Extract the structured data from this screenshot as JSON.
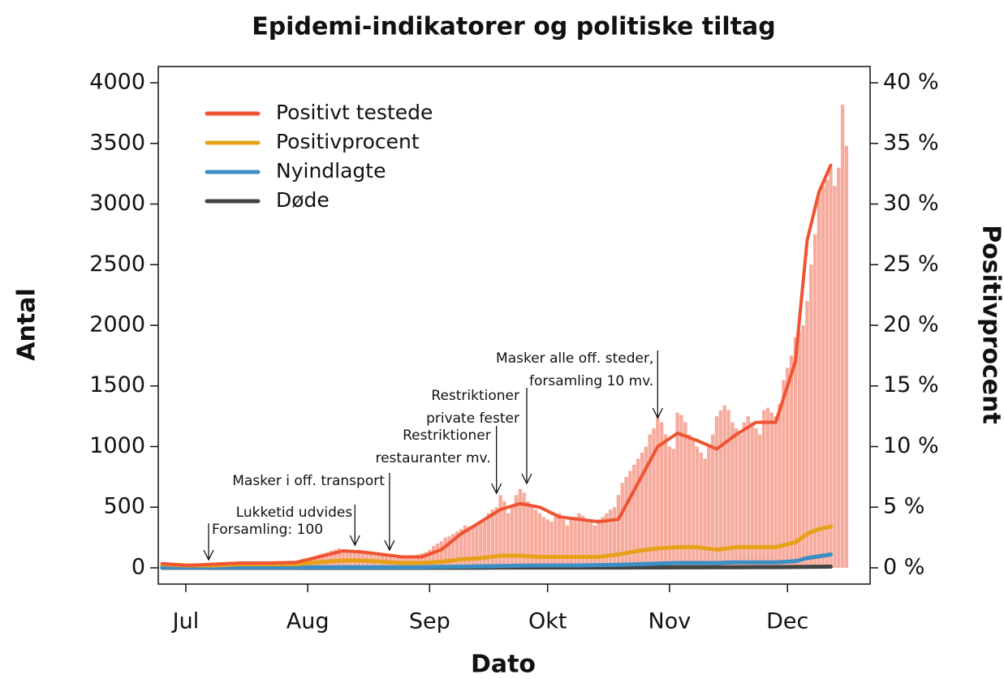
{
  "chart_data": {
    "type": "bar-line",
    "title": "Epidemi-indikatorer og politiske tiltag",
    "xlabel": "Dato",
    "ylabel": "Antal",
    "y2label": "Positivprocent",
    "xlim": [
      -7,
      174
    ],
    "xticks": [
      {
        "value": 0,
        "label": "Jul"
      },
      {
        "value": 31,
        "label": "Aug"
      },
      {
        "value": 62,
        "label": "Sep"
      },
      {
        "value": 92,
        "label": "Okt"
      },
      {
        "value": 123,
        "label": "Nov"
      },
      {
        "value": 153,
        "label": "Dec"
      }
    ],
    "ylim": [
      -134,
      4134
    ],
    "yticks": [
      0,
      500,
      1000,
      1500,
      2000,
      2500,
      3000,
      3500,
      4000
    ],
    "y2lim": [
      -1.34,
      41.34
    ],
    "y2ticks": [
      {
        "value": 0,
        "label": "0 %"
      },
      {
        "value": 5,
        "label": "5 %"
      },
      {
        "value": 10,
        "label": "10 %"
      },
      {
        "value": 15,
        "label": "15 %"
      },
      {
        "value": 20,
        "label": "20 %"
      },
      {
        "value": 25,
        "label": "25 %"
      },
      {
        "value": 30,
        "label": "30 %"
      },
      {
        "value": 35,
        "label": "35 %"
      },
      {
        "value": 40,
        "label": "40 %"
      }
    ],
    "legend": "top-left",
    "bars": {
      "color": "#f6ab9d",
      "x": [
        -6,
        -5,
        -4,
        -3,
        -2,
        -1,
        0,
        1,
        2,
        3,
        4,
        5,
        6,
        7,
        8,
        9,
        10,
        11,
        12,
        13,
        14,
        15,
        16,
        17,
        18,
        19,
        20,
        21,
        22,
        23,
        24,
        25,
        26,
        27,
        28,
        29,
        30,
        31,
        32,
        33,
        34,
        35,
        36,
        37,
        38,
        39,
        40,
        41,
        42,
        43,
        44,
        45,
        46,
        47,
        48,
        49,
        50,
        51,
        52,
        53,
        54,
        55,
        56,
        57,
        58,
        59,
        60,
        61,
        62,
        63,
        64,
        65,
        66,
        67,
        68,
        69,
        70,
        71,
        72,
        73,
        74,
        75,
        76,
        77,
        78,
        79,
        80,
        81,
        82,
        83,
        84,
        85,
        86,
        87,
        88,
        89,
        90,
        91,
        92,
        93,
        94,
        95,
        96,
        97,
        98,
        99,
        100,
        101,
        102,
        103,
        104,
        105,
        106,
        107,
        108,
        109,
        110,
        111,
        112,
        113,
        114,
        115,
        116,
        117,
        118,
        119,
        120,
        121,
        122,
        123,
        124,
        125,
        126,
        127,
        128,
        129,
        130,
        131,
        132,
        133,
        134,
        135,
        136,
        137,
        138,
        139,
        140,
        141,
        142,
        143,
        144,
        145,
        146,
        147,
        148,
        149,
        150,
        151,
        152,
        153,
        154,
        155,
        156,
        157,
        158,
        159,
        160,
        161,
        162,
        163,
        164,
        165,
        166,
        167,
        168
      ],
      "values": [
        40,
        35,
        30,
        28,
        25,
        22,
        20,
        18,
        15,
        12,
        15,
        18,
        20,
        22,
        25,
        28,
        30,
        32,
        35,
        30,
        28,
        30,
        35,
        38,
        40,
        35,
        32,
        30,
        35,
        38,
        40,
        42,
        45,
        40,
        50,
        60,
        70,
        80,
        90,
        100,
        110,
        120,
        130,
        140,
        150,
        160,
        150,
        140,
        130,
        140,
        150,
        140,
        130,
        120,
        110,
        100,
        110,
        100,
        90,
        80,
        90,
        85,
        80,
        90,
        100,
        110,
        120,
        130,
        150,
        180,
        200,
        220,
        250,
        260,
        280,
        300,
        320,
        350,
        340,
        330,
        350,
        380,
        400,
        450,
        480,
        500,
        600,
        550,
        450,
        500,
        600,
        650,
        620,
        550,
        500,
        480,
        450,
        420,
        400,
        380,
        420,
        450,
        400,
        350,
        400,
        420,
        450,
        430,
        400,
        380,
        350,
        400,
        420,
        450,
        480,
        500,
        600,
        700,
        750,
        800,
        850,
        900,
        950,
        1000,
        1100,
        1150,
        1250,
        1200,
        1100,
        1000,
        980,
        1280,
        1260,
        1200,
        1100,
        1050,
        1000,
        950,
        900,
        1000,
        1100,
        1250,
        1300,
        1340,
        1300,
        1200,
        1150,
        1100,
        1200,
        1250,
        1200,
        1150,
        1100,
        1300,
        1320,
        1280,
        1250,
        1350,
        1550,
        1650,
        1750,
        1900,
        1950,
        2000,
        2200,
        2500,
        2750,
        3100,
        3150,
        3200,
        3300,
        3150,
        3300,
        3820,
        3480
      ]
    },
    "x": [
      -6,
      0,
      7,
      14,
      21,
      28,
      35,
      40,
      45,
      50,
      55,
      60,
      65,
      70,
      75,
      80,
      85,
      90,
      95,
      100,
      105,
      110,
      115,
      120,
      125,
      130,
      135,
      140,
      145,
      150,
      155,
      158,
      161,
      164
    ],
    "series": [
      {
        "name": "Positivt testede",
        "color": "#ef5331",
        "values": [
          35,
          20,
          30,
          40,
          40,
          45,
          100,
          140,
          130,
          110,
          90,
          90,
          150,
          280,
          380,
          480,
          530,
          500,
          420,
          400,
          380,
          400,
          700,
          1000,
          1110,
          1050,
          980,
          1100,
          1200,
          1200,
          1700,
          2700,
          3100,
          3320
        ]
      },
      {
        "name": "Positivprocent",
        "color": "#e6a118",
        "axis": "y2",
        "values": [
          0.3,
          0.2,
          0.2,
          0.3,
          0.3,
          0.3,
          0.5,
          0.6,
          0.6,
          0.5,
          0.4,
          0.4,
          0.5,
          0.7,
          0.8,
          1.0,
          1.0,
          0.9,
          0.9,
          0.9,
          0.9,
          1.1,
          1.4,
          1.6,
          1.7,
          1.7,
          1.5,
          1.7,
          1.7,
          1.7,
          2.1,
          2.8,
          3.2,
          3.4
        ]
      },
      {
        "name": "Nyindlagte",
        "color": "#3b8fc5",
        "values": [
          5,
          3,
          3,
          3,
          3,
          3,
          5,
          5,
          5,
          5,
          5,
          5,
          8,
          10,
          12,
          15,
          18,
          20,
          20,
          20,
          22,
          25,
          30,
          35,
          40,
          40,
          40,
          45,
          45,
          45,
          55,
          80,
          95,
          110
        ]
      },
      {
        "name": "Døde",
        "color": "#444444",
        "values": [
          1,
          1,
          0,
          0,
          0,
          0,
          0,
          0,
          0,
          0,
          0,
          0,
          1,
          1,
          1,
          2,
          2,
          2,
          2,
          2,
          2,
          2,
          3,
          3,
          4,
          4,
          5,
          5,
          6,
          6,
          7,
          8,
          9,
          10
        ]
      }
    ],
    "annotations": [
      {
        "lines": [
          "Forsamling: 100"
        ],
        "x": 5.8
      },
      {
        "lines": [
          "Lukketid udvides"
        ],
        "x": 43
      },
      {
        "lines": [
          "Masker i off. transport"
        ],
        "x": 51.8
      },
      {
        "lines": [
          "Restriktioner",
          "restauranter mv."
        ],
        "x": 79
      },
      {
        "lines": [
          "Restriktioner",
          "private fester"
        ],
        "x": 86.7
      },
      {
        "lines": [
          "Masker alle off. steder,",
          "forsamling 10 mv."
        ],
        "x": 120
      }
    ]
  }
}
